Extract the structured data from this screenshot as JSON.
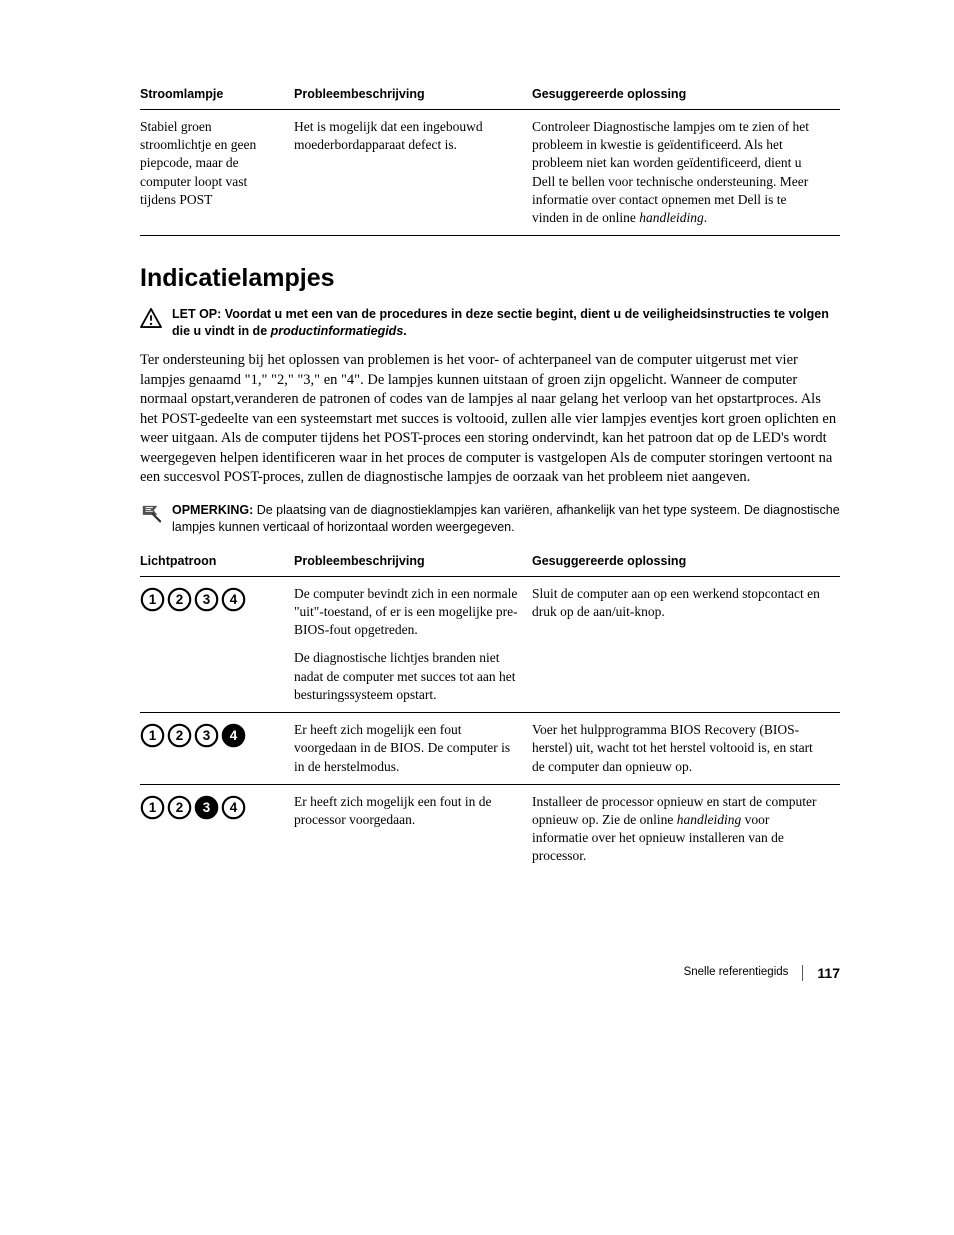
{
  "table1": {
    "headers": [
      "Stroomlampje",
      "Probleembeschrijving",
      "Gesuggereerde oplossing"
    ],
    "row": {
      "c1": "Stabiel groen stroomlichtje en geen piepcode, maar de computer loopt vast tijdens POST",
      "c2": "Het is mogelijk dat een ingebouwd moederbordapparaat defect is.",
      "c3_a": "Controleer Diagnostische lampjes om te zien of het probleem in kwestie is geïdentificeerd. Als het probleem niet kan worden geïdentificeerd, dient u Dell te bellen voor technische ondersteuning. Meer informatie over contact opnemen met Dell is te vinden in de online ",
      "c3_b": "handleiding",
      "c3_c": "."
    }
  },
  "section_title": "Indicatielampjes",
  "caution": {
    "lead": "LET OP: ",
    "text_a": "Voordat u met een van de procedures in deze sectie begint, dient u de veiligheidsinstructies te volgen die u vindt in de ",
    "text_em": "productinformatiegids",
    "text_b": "."
  },
  "body_paragraph": "Ter ondersteuning bij het oplossen van problemen is het voor- of achterpaneel van de computer uitgerust met vier lampjes genaamd \"1,\" \"2,\" \"3,\" en \"4\". De lampjes kunnen uitstaan of groen zijn opgelicht. Wanneer de computer normaal opstart,veranderen de patronen of codes van de lampjes al naar gelang het verloop van het opstartproces. Als het POST-gedeelte van een systeemstart met succes is voltooid, zullen alle vier lampjes eventjes kort groen oplichten en weer uitgaan. Als de computer tijdens het POST-proces een storing ondervindt, kan het patroon dat op de LED's wordt weergegeven helpen identificeren waar in het proces de computer is vastgelopen Als de computer storingen vertoont na een succesvol POST-proces, zullen de diagnostische lampjes de oorzaak van het probleem niet aangeven.",
  "note": {
    "lead": "OPMERKING: ",
    "text": "De plaatsing van de diagnostieklampjes kan variëren, afhankelijk van het type systeem. De diagnostische lampjes kunnen verticaal of horizontaal worden weergegeven."
  },
  "table2": {
    "headers": [
      "Lichtpatroon",
      "Probleembeschrijving",
      "Gesuggereerde oplossing"
    ],
    "rows": [
      {
        "pattern": [
          false,
          false,
          false,
          false
        ],
        "desc_a": "De computer bevindt zich in een normale \"uit\"-toestand, of er is een mogelijke pre-BIOS-fout opgetreden.",
        "desc_b": "De diagnostische lichtjes branden niet nadat de computer met succes tot aan het besturingssysteem opstart.",
        "sol": "Sluit de computer aan op een werkend stopcontact en druk op de aan/uit-knop."
      },
      {
        "pattern": [
          false,
          false,
          false,
          true
        ],
        "desc_a": "Er heeft zich mogelijk een fout voorgedaan in de BIOS. De computer is in de herstelmodus.",
        "sol": "Voer het hulpprogramma BIOS Recovery (BIOS-herstel) uit, wacht tot het herstel voltooid is, en start de computer dan opnieuw op."
      },
      {
        "pattern": [
          false,
          false,
          true,
          false
        ],
        "desc_a": "Er heeft zich mogelijk een fout in de processor voorgedaan.",
        "sol_a": "Installeer de processor opnieuw en start de computer opnieuw op. Zie de online ",
        "sol_em": "handleiding",
        "sol_b": " voor informatie over het opnieuw installeren van de processor."
      }
    ]
  },
  "footer": {
    "title": "Snelle referentiegids",
    "page": "117"
  },
  "colors": {
    "on": "#000000",
    "off": "#ffffff",
    "stroke": "#000000"
  }
}
